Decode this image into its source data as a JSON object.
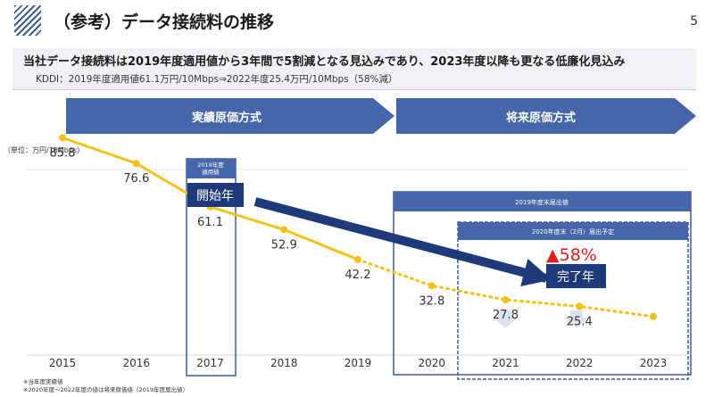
{
  "header": {
    "title": "（参考）データ接続料の推移",
    "page_number": "5"
  },
  "summary": {
    "main": "当社データ接続料は2019年度適用値から3年間で5割減となる見込みであり、2023年度以降も更なる低廉化見込み",
    "sub": "KDDI：2019年度適用値61.1万円/10Mbps⇒2022年度25.4万円/10Mbps（58%減）"
  },
  "phases": {
    "actual": "実績原価方式",
    "future": "将来原価方式"
  },
  "annotations": {
    "applied_box": "2019年度\n適用値",
    "start": "開始年",
    "end": "完了年",
    "reduction": "▲58%",
    "box_2019_end": "2019年度末届出値",
    "box_2020_end": "2020年度末（2月）届出予定"
  },
  "footnotes": {
    "note1": "※当年度実績値",
    "note2": "※2020年度～2022年度の値は将来原価値（2019年度届出値）"
  },
  "colors": {
    "line": "#f5c018",
    "arrow_blue": "#4566a8",
    "navy": "#1f3a7a",
    "red": "#e02020",
    "box_border": "#3f5a9b"
  },
  "chart_data": {
    "type": "line",
    "unit_label": "（単位：万円/10Mbps）",
    "categories": [
      "2015",
      "2016",
      "2017",
      "2018",
      "2019",
      "2020",
      "2021",
      "2022",
      "2023"
    ],
    "series": [
      {
        "name": "実績",
        "style": "solid",
        "x": [
          "2015",
          "2016",
          "2017",
          "2018",
          "2019"
        ],
        "values": [
          85.8,
          76.6,
          61.1,
          52.9,
          42.2
        ]
      },
      {
        "name": "将来原価",
        "style": "dotted",
        "x": [
          "2019",
          "2020",
          "2021",
          "2022",
          "2023"
        ],
        "values": [
          42.2,
          32.8,
          27.8,
          25.4,
          21.8
        ]
      }
    ],
    "labels": [
      {
        "x": "2015",
        "text": "85.8"
      },
      {
        "x": "2016",
        "text": "76.6"
      },
      {
        "x": "2017",
        "text": "61.1"
      },
      {
        "x": "2018",
        "text": "52.9"
      },
      {
        "x": "2019",
        "text": "42.2"
      },
      {
        "x": "2020",
        "text": "32.8"
      },
      {
        "x": "2021",
        "text": "27.8"
      },
      {
        "x": "2022",
        "text": "25.4"
      }
    ],
    "ylim": [
      0,
      100
    ]
  }
}
